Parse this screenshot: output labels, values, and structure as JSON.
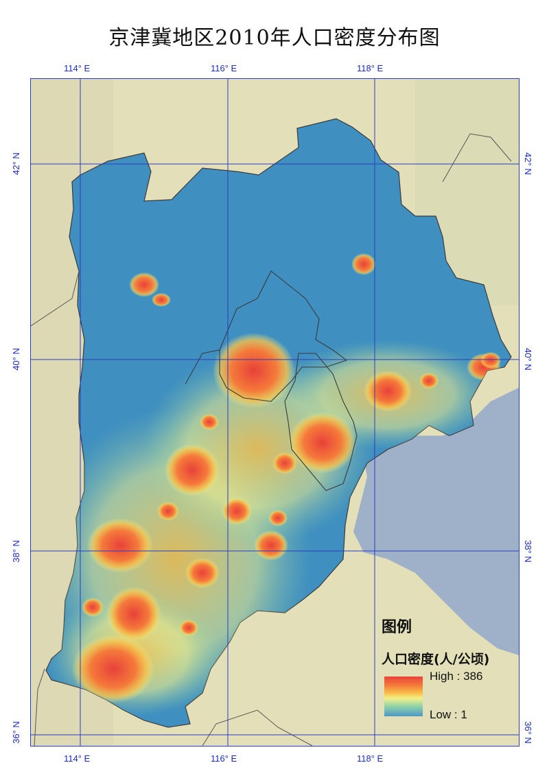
{
  "title": "京津冀地区2010年人口密度分布图",
  "axes": {
    "lon_labels": [
      "114° E",
      "116° E",
      "118° E"
    ],
    "lat_labels": [
      "42° N",
      "40° N",
      "38° N",
      "36° N"
    ]
  },
  "legend": {
    "title": "图例",
    "subtitle": "人口密度(人/公顷)",
    "high_label": "High : 386",
    "low_label": "Low : 1",
    "high_value": 386,
    "low_value": 1,
    "colors": [
      "#e8413a",
      "#f57a3a",
      "#f8c04a",
      "#f3f08a",
      "#8fd2a8",
      "#4f98c6"
    ]
  },
  "colors": {
    "background": "#e3dfb8",
    "region": "#3f8fc0",
    "sea": "#9fb0c9",
    "grid": "#2b3bbf",
    "high": "#e8413a",
    "mid": "#f8c04a",
    "low": "#4f98c6"
  }
}
